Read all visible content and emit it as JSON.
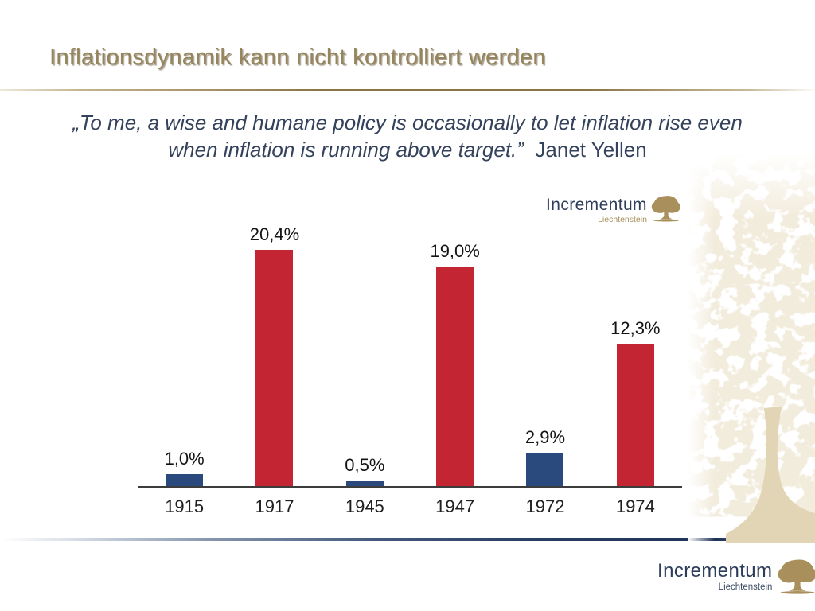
{
  "slide": {
    "title": "Inflationsdynamik kann nicht kontrolliert werden",
    "quote_line1": "„To me, a wise and humane policy is occasionally to let inflation rise even",
    "quote_line2": "when inflation is running above target.”",
    "quote_attribution": "Janet Yellen"
  },
  "logo": {
    "name": "Incrementum",
    "location": "Liechtenstein"
  },
  "chart_data": {
    "type": "bar",
    "categories": [
      "1915",
      "1917",
      "1945",
      "1947",
      "1972",
      "1974"
    ],
    "values": [
      1.0,
      20.4,
      0.5,
      19.0,
      2.9,
      12.3
    ],
    "value_labels": [
      "1,0%",
      "20,4%",
      "0,5%",
      "19,0%",
      "2,9%",
      "12,3%"
    ],
    "bar_colors": [
      "#2a4a7d",
      "#c42532",
      "#2a4a7d",
      "#c42532",
      "#2a4a7d",
      "#c42532"
    ],
    "title": "",
    "xlabel": "",
    "ylabel": "",
    "ylim": [
      0,
      22
    ],
    "grid": false,
    "legend": null
  },
  "colors": {
    "title_gold": "#95855c",
    "quote_navy": "#34425c",
    "bar_red": "#c42532",
    "bar_blue": "#2a4a7d",
    "logo_navy": "#2c3c59",
    "logo_gold": "#a98f5c",
    "texture_tan": "#e2d5b6",
    "axis": "#3c3c3c"
  }
}
